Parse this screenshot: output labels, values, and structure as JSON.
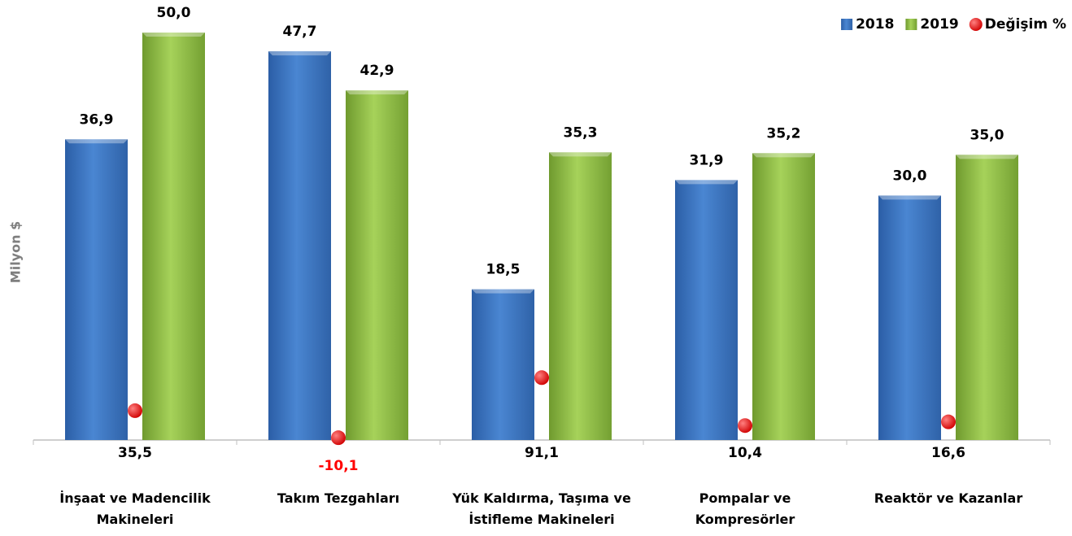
{
  "chart_data": {
    "type": "bar",
    "y_label": "Milyon $",
    "categories": [
      "İnşaat ve Madencilik Makineleri",
      "Takım Tezgahları",
      "Yük Kaldırma, Taşıma ve İstifleme Makineleri",
      "Pompalar ve Kompresörler",
      "Reaktör ve Kazanlar"
    ],
    "series": [
      {
        "name": "2018",
        "color": "#3f78c5",
        "values": [
          36.9,
          47.7,
          18.5,
          31.9,
          30.0
        ],
        "value_labels": [
          "36,9",
          "47,7",
          "18,5",
          "31,9",
          "30,0"
        ]
      },
      {
        "name": "2019",
        "color": "#92c046",
        "values": [
          50.0,
          42.9,
          35.3,
          35.2,
          35.0
        ],
        "value_labels": [
          "50,0",
          "42,9",
          "35,3",
          "35,2",
          "35,0"
        ]
      },
      {
        "name": "Değişim %",
        "color": "#ff0000",
        "axis": "y2",
        "type": "scatter",
        "values": [
          35.5,
          -10.1,
          91.1,
          10.4,
          16.6
        ],
        "value_labels": [
          "35,5",
          "-10,1",
          "91,1",
          "10,4",
          "16,6"
        ]
      }
    ],
    "ylim": [
      0,
      52
    ],
    "y2lim": [
      -14,
      700
    ],
    "legend": "top-right"
  }
}
